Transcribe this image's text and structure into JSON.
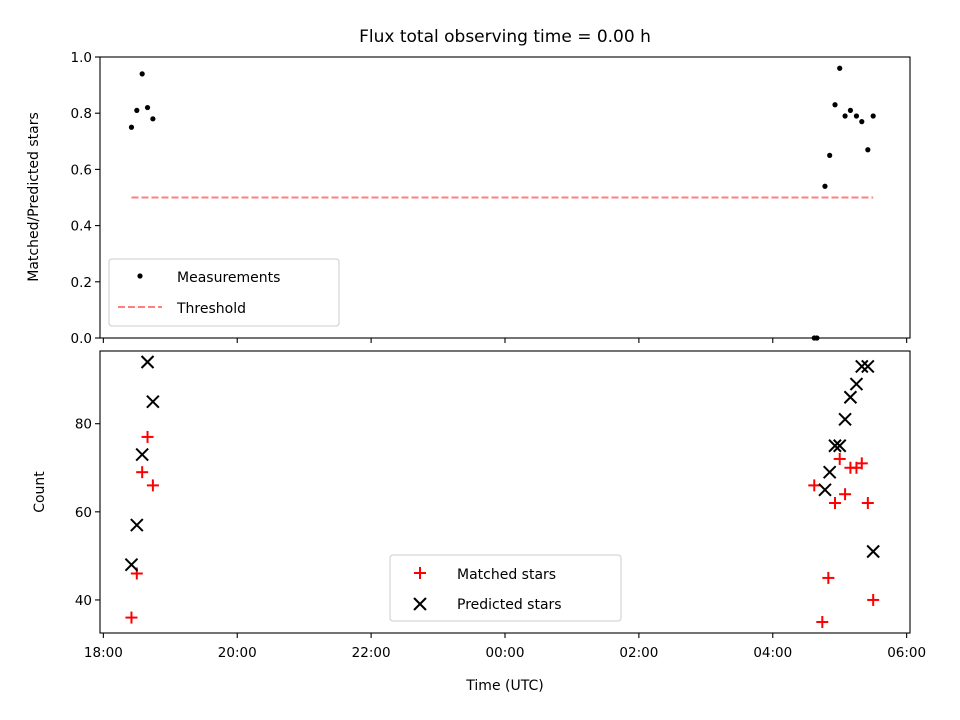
{
  "chart_data": [
    {
      "type": "scatter",
      "title": "Flux total observing time = 0.00 h",
      "xlabel": "",
      "ylabel": "Matched/Predicted stars",
      "ylim": [
        0,
        1.0
      ],
      "yticks": [
        0.0,
        0.2,
        0.4,
        0.6,
        0.8,
        1.0
      ],
      "ytick_labels": [
        "0.0",
        "0.2",
        "0.4",
        "0.6",
        "0.8",
        "1.0"
      ],
      "xlim_hours": [
        17.95,
        30.05
      ],
      "xticks_hours": [
        18,
        20,
        22,
        24,
        26,
        28,
        30
      ],
      "legend_position": "lower-left",
      "series": [
        {
          "name": "Measurements",
          "marker": "dot",
          "color": "#000000",
          "x": [
            18.42,
            18.5,
            18.58,
            18.66,
            18.74,
            28.62,
            28.66,
            28.78,
            28.85,
            28.93,
            29.0,
            29.08,
            29.16,
            29.25,
            29.33,
            29.42,
            29.5
          ],
          "y": [
            0.75,
            0.81,
            0.94,
            0.82,
            0.78,
            0.0,
            0.0,
            0.54,
            0.65,
            0.83,
            0.96,
            0.79,
            0.81,
            0.79,
            0.77,
            0.67,
            0.79
          ]
        },
        {
          "name": "Threshold",
          "style": "dashed",
          "color": "#ff7f7f",
          "x": [
            18.42,
            29.5
          ],
          "y": [
            0.5,
            0.5
          ]
        }
      ]
    },
    {
      "type": "scatter",
      "title": "",
      "xlabel": "Time (UTC)",
      "ylabel": "Count",
      "ylim": [
        32.5,
        96.5
      ],
      "yticks": [
        40,
        60,
        80
      ],
      "ytick_labels": [
        "40",
        "60",
        "80"
      ],
      "xlim_hours": [
        17.95,
        30.05
      ],
      "xticks_hours": [
        18,
        20,
        22,
        24,
        26,
        28,
        30
      ],
      "xtick_labels": [
        "18:00",
        "20:00",
        "22:00",
        "00:00",
        "02:00",
        "04:00",
        "06:00"
      ],
      "legend_position": "lower-center",
      "series": [
        {
          "name": "Matched stars",
          "marker": "plus",
          "color": "#ff0000",
          "x": [
            18.42,
            18.5,
            18.58,
            18.66,
            18.74,
            28.62,
            28.74,
            28.83,
            28.93,
            29.0,
            29.08,
            29.16,
            29.25,
            29.33,
            29.42,
            29.5
          ],
          "y": [
            36,
            46,
            69,
            77,
            66,
            66,
            35,
            45,
            62,
            72,
            64,
            70,
            70,
            71,
            62,
            40
          ]
        },
        {
          "name": "Predicted stars",
          "marker": "x",
          "color": "#000000",
          "x": [
            18.42,
            18.5,
            18.58,
            18.66,
            18.74,
            28.78,
            28.85,
            28.93,
            29.0,
            29.08,
            29.16,
            29.25,
            29.33,
            29.42,
            29.5
          ],
          "y": [
            48,
            57,
            73,
            94,
            85,
            65,
            69,
            75,
            75,
            81,
            86,
            89,
            93,
            93,
            51
          ]
        }
      ]
    }
  ]
}
